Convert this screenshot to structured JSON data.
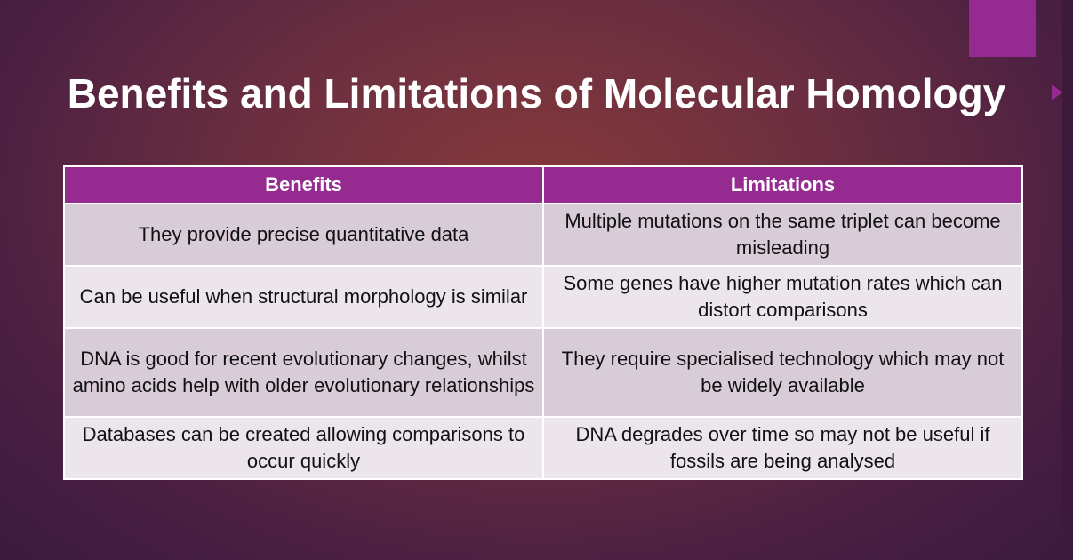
{
  "header": {
    "title": "Benefits and Limitations of Molecular Homology"
  },
  "table": {
    "columns": [
      "Benefits",
      "Limitations"
    ],
    "rows": [
      [
        "They provide precise quantitative data",
        "Multiple mutations on the same triplet can become misleading"
      ],
      [
        "Can be useful when structural morphology is similar",
        "Some genes have higher mutation rates which can distort comparisons"
      ],
      [
        "DNA is good for recent evolutionary changes, whilst amino acids help with older evolutionary relationships",
        "They require specialised technology which may not be widely available"
      ],
      [
        "Databases can be created allowing comparisons to occur quickly",
        "DNA degrades over time so may not be useful if fossils are being analysed"
      ]
    ]
  }
}
